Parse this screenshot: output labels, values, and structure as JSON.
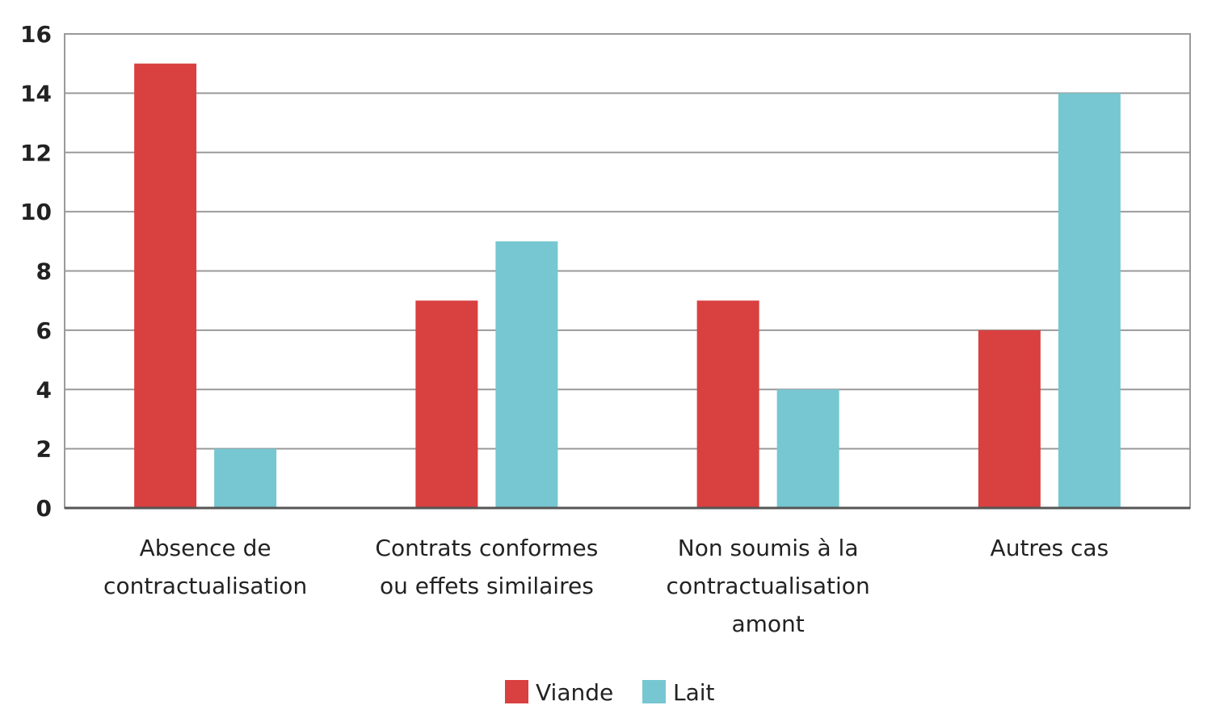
{
  "chart_data": {
    "type": "bar",
    "categories": [
      [
        "Absence de",
        "contractualisation"
      ],
      [
        "Contrats conformes",
        "ou effets similaires"
      ],
      [
        "Non soumis à la",
        "contractualisation",
        "amont"
      ],
      [
        "Autres cas"
      ]
    ],
    "series": [
      {
        "name": "Viande",
        "color": "#d94040",
        "values": [
          15,
          7,
          7,
          6
        ]
      },
      {
        "name": "Lait",
        "color": "#76c7d1",
        "values": [
          2,
          9,
          4,
          14
        ]
      }
    ],
    "ylim": [
      0,
      16
    ],
    "yticks": [
      0,
      2,
      4,
      6,
      8,
      10,
      12,
      14,
      16
    ],
    "grid": true,
    "legend": "bottom-center",
    "title": "",
    "xlabel": "",
    "ylabel": ""
  }
}
